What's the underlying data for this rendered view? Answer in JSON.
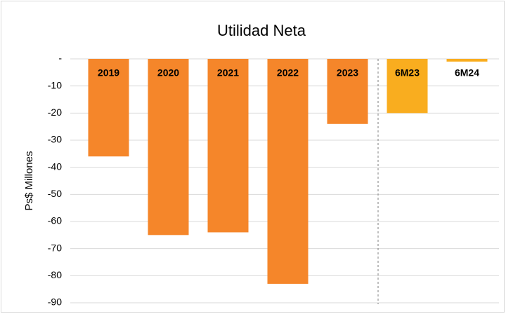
{
  "chart_data": {
    "type": "bar",
    "title": "Utilidad Neta",
    "y_label": "Ps$ Millones",
    "categories": [
      "2019",
      "2020",
      "2021",
      "2022",
      "2023",
      "6M23",
      "6M24"
    ],
    "values": [
      -36,
      -65,
      -64,
      -83,
      -24,
      -20,
      -1
    ],
    "colors": [
      "#f5862a",
      "#f5862a",
      "#f5862a",
      "#f5862a",
      "#f5862a",
      "#f9ad1f",
      "#f9ad1f"
    ],
    "ylim": [
      -90,
      0
    ],
    "yticks": [
      {
        "value": 0,
        "label": "-"
      },
      -10,
      -20,
      -30,
      -40,
      -50,
      -60,
      -70,
      -80,
      -90
    ],
    "grid": true
  }
}
